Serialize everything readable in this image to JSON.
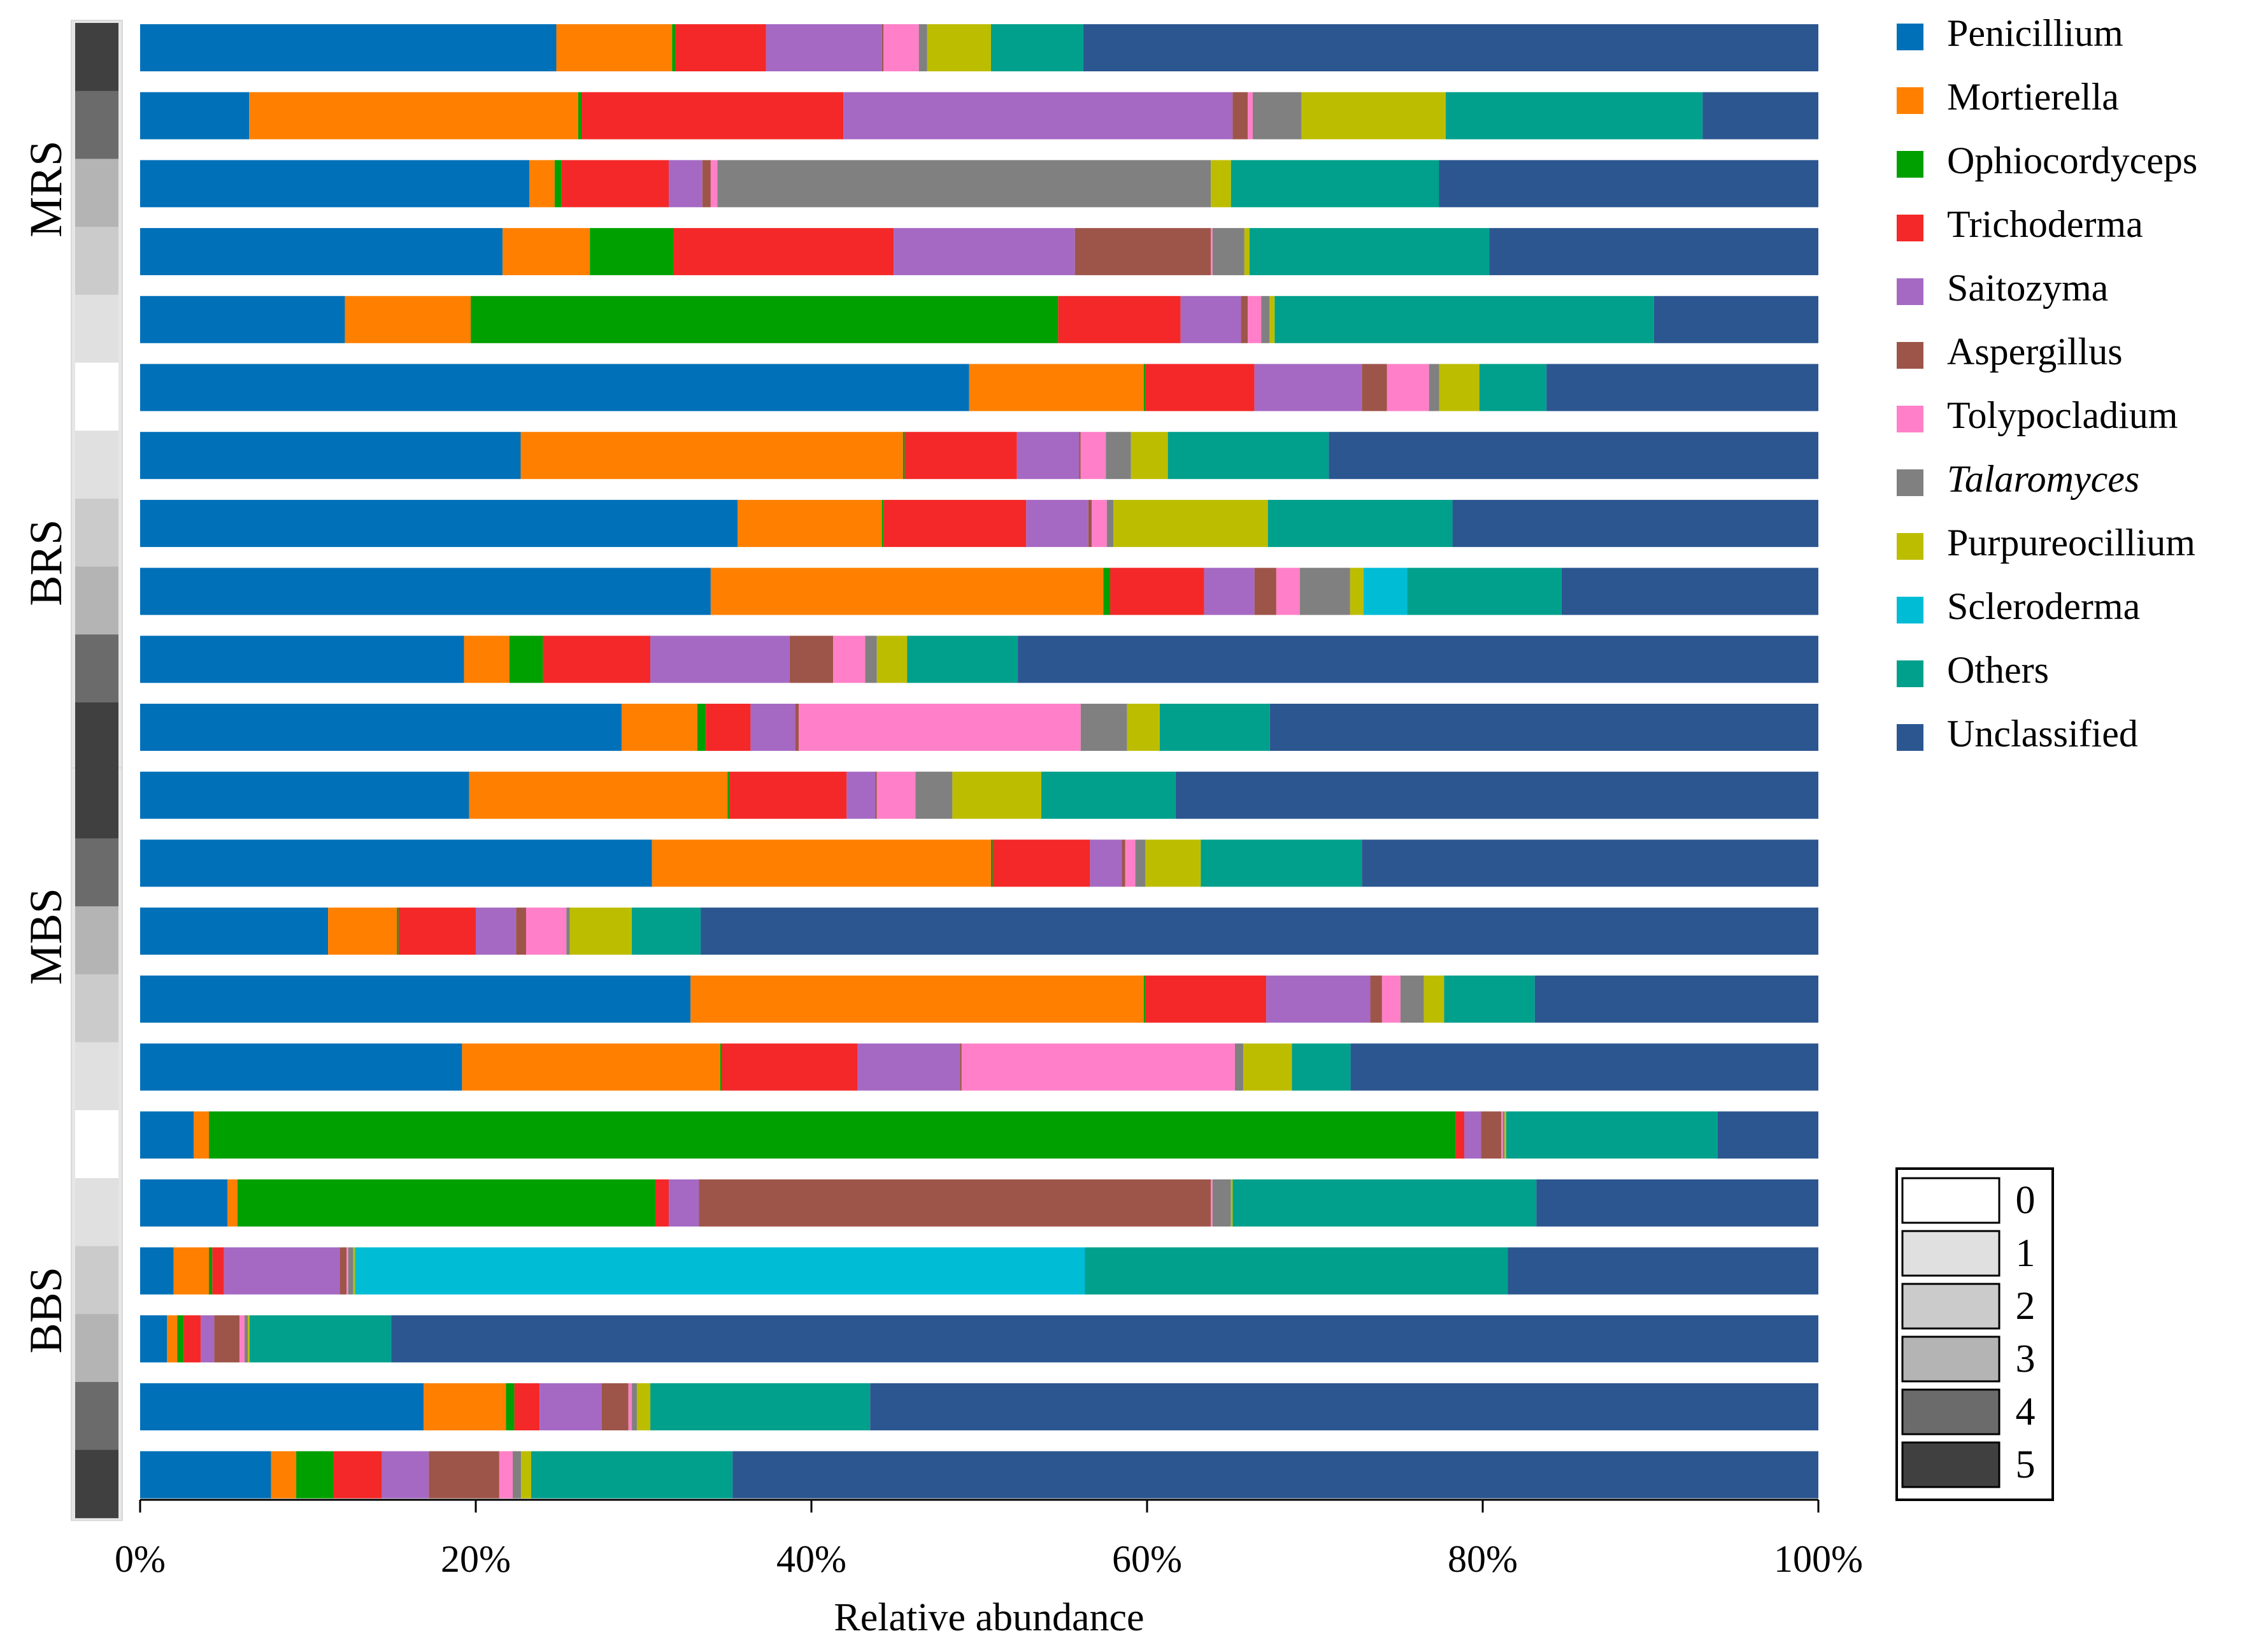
{
  "chart_data": {
    "type": "bar",
    "orientation": "horizontal",
    "stacked": true,
    "title": "",
    "xlabel": "Relative abundance",
    "ylabel": "",
    "xlim": [
      0,
      100
    ],
    "x_ticks": [
      "0%",
      "20%",
      "40%",
      "60%",
      "80%",
      "100%"
    ],
    "grid": false,
    "legend_position": "right",
    "groups": [
      {
        "name": "MRS",
        "rows": [
          0,
          4
        ]
      },
      {
        "name": "BRS",
        "rows": [
          5,
          10
        ]
      },
      {
        "name": "MBS",
        "rows": [
          11,
          15
        ]
      },
      {
        "name": "BBS",
        "rows": [
          16,
          21
        ]
      }
    ],
    "levels": [
      5,
      4,
      3,
      2,
      1,
      0,
      1,
      2,
      3,
      4,
      5,
      5,
      4,
      3,
      2,
      1,
      0,
      1,
      2,
      3,
      4,
      5
    ],
    "level_legend": [
      {
        "label": "0",
        "color": "#FFFFFF"
      },
      {
        "label": "1",
        "color": "#E0E0E0"
      },
      {
        "label": "2",
        "color": "#CBCBCB"
      },
      {
        "label": "3",
        "color": "#B4B4B4"
      },
      {
        "label": "4",
        "color": "#6B6B6B"
      },
      {
        "label": "5",
        "color": "#404040"
      }
    ],
    "series": [
      {
        "name": "Penicillium",
        "color": "#0070B8",
        "italic": false,
        "values": [
          24.8,
          6.5,
          23.2,
          21.6,
          12.2,
          49.4,
          22.7,
          35.6,
          34.0,
          19.3,
          28.0,
          19.6,
          30.5,
          11.2,
          32.8,
          19.2,
          3.2,
          5.2,
          2.0,
          1.6,
          16.9,
          7.8
        ]
      },
      {
        "name": "Mortierella",
        "color": "#FF8000",
        "italic": false,
        "values": [
          6.9,
          19.6,
          1.5,
          5.2,
          7.5,
          10.4,
          22.8,
          8.6,
          23.4,
          2.7,
          4.4,
          15.4,
          20.2,
          4.1,
          27.0,
          15.4,
          0.9,
          0.6,
          2.1,
          0.6,
          4.9,
          1.5
        ]
      },
      {
        "name": "Ophiocordyceps",
        "color": "#00A000",
        "italic": false,
        "values": [
          0.2,
          0.2,
          0.4,
          5.0,
          35.0,
          0.1,
          0.1,
          0.1,
          0.4,
          2.0,
          0.5,
          0.1,
          0.1,
          0.1,
          0.1,
          0.1,
          74.3,
          24.9,
          0.2,
          0.4,
          0.5,
          2.2
        ]
      },
      {
        "name": "Trichoderma",
        "color": "#F42828",
        "italic": false,
        "values": [
          5.4,
          15.6,
          6.4,
          13.1,
          7.3,
          6.5,
          6.7,
          8.5,
          5.6,
          6.4,
          2.6,
          7.0,
          5.8,
          4.6,
          7.2,
          8.1,
          0.5,
          0.8,
          0.7,
          1.0,
          1.5,
          2.9
        ]
      },
      {
        "name": "Saitozyma",
        "color": "#A569C4",
        "italic": false,
        "values": [
          6.9,
          23.2,
          2.0,
          10.8,
          3.6,
          6.4,
          3.7,
          3.7,
          3.0,
          8.3,
          2.6,
          1.7,
          1.9,
          2.4,
          6.2,
          6.1,
          1.0,
          1.8,
          6.9,
          0.8,
          3.7,
          2.8
        ]
      },
      {
        "name": "Aspergillus",
        "color": "#9E5549",
        "italic": false,
        "values": [
          0.1,
          0.9,
          0.5,
          8.1,
          0.4,
          1.5,
          0.1,
          0.2,
          1.3,
          2.6,
          0.2,
          0.1,
          0.2,
          0.6,
          0.7,
          0.1,
          1.2,
          30.5,
          0.4,
          1.5,
          1.6,
          4.2
        ]
      },
      {
        "name": "Tolypocladium",
        "color": "#FF80C8",
        "italic": false,
        "values": [
          2.1,
          0.3,
          0.4,
          0.1,
          0.8,
          2.5,
          1.5,
          0.9,
          1.4,
          1.9,
          16.4,
          2.3,
          0.6,
          2.4,
          1.1,
          16.3,
          0.1,
          0.1,
          0.1,
          0.3,
          0.2,
          0.8
        ]
      },
      {
        "name": "Talaromyces",
        "color": "#808080",
        "italic": true,
        "values": [
          0.5,
          2.9,
          29.4,
          1.9,
          0.5,
          0.6,
          1.5,
          0.4,
          3.0,
          0.7,
          2.7,
          2.2,
          0.6,
          0.2,
          1.4,
          0.5,
          0.1,
          1.1,
          0.3,
          0.2,
          0.3,
          0.5
        ]
      },
      {
        "name": "Purpureocillium",
        "color": "#BDBD00",
        "italic": false,
        "values": [
          3.8,
          8.6,
          1.2,
          0.3,
          0.3,
          2.4,
          2.2,
          9.2,
          0.8,
          1.8,
          1.9,
          5.3,
          3.3,
          3.7,
          1.2,
          2.9,
          0.1,
          0.1,
          0.1,
          0.1,
          0.8,
          0.6
        ]
      },
      {
        "name": "Scleroderma",
        "color": "#00BCD4",
        "italic": false,
        "values": [
          0.0,
          0.0,
          0.0,
          0.0,
          0.0,
          0.0,
          0.0,
          0.0,
          2.6,
          0.0,
          0.0,
          0.0,
          0.0,
          0.0,
          0.0,
          0.0,
          0.0,
          0.0,
          43.5,
          0.0,
          0.0,
          0.0
        ]
      },
      {
        "name": "Others",
        "color": "#00A08C",
        "italic": false,
        "values": [
          5.5,
          15.3,
          12.4,
          14.3,
          22.6,
          4.0,
          9.6,
          11.0,
          9.2,
          6.6,
          6.4,
          8.0,
          9.6,
          4.1,
          5.4,
          3.5,
          12.6,
          18.1,
          25.2,
          8.4,
          13.1,
          12.0
        ]
      },
      {
        "name": "Unclassified",
        "color": "#2C5690",
        "italic": false,
        "values": [
          43.8,
          6.9,
          22.6,
          19.6,
          9.8,
          16.2,
          29.2,
          21.8,
          15.3,
          47.7,
          31.9,
          38.3,
          27.2,
          66.6,
          16.9,
          27.9,
          6.0,
          16.8,
          18.5,
          84.7,
          56.5,
          64.7
        ]
      }
    ]
  }
}
